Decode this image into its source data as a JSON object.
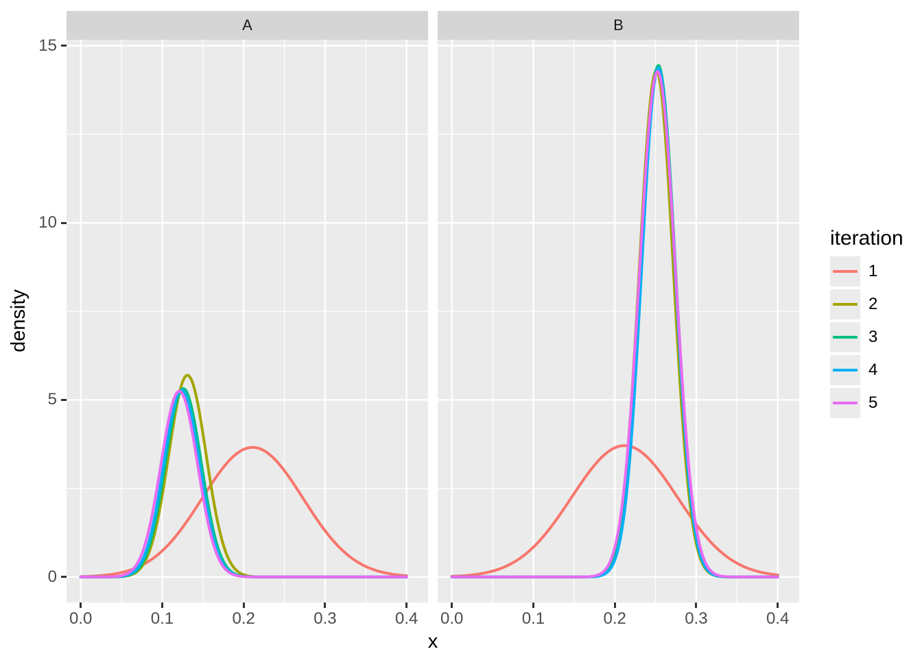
{
  "figure": {
    "xlabel": "x",
    "ylabel": "density",
    "background": "#FFFFFF",
    "panel_bg": "#EBEBEB",
    "strip_bg": "#D5D5D5",
    "grid_color": "#FFFFFF",
    "tick_mark_color": "#333333",
    "tick_label_color": "#4D4D4D",
    "strip_text_color": "#1A1A1A"
  },
  "axes": {
    "x_tick_labels": [
      "0.0",
      "0.1",
      "0.2",
      "0.3",
      "0.4"
    ],
    "x_tick_values": [
      0,
      0.1,
      0.2,
      0.3,
      0.4
    ],
    "x_minor_values": [
      0.05,
      0.15,
      0.25,
      0.35
    ],
    "y_tick_labels": [
      "0",
      "5",
      "10",
      "15"
    ],
    "y_tick_values": [
      0,
      5,
      10,
      15
    ],
    "y_minor_values": [
      2.5,
      7.5,
      12.5
    ],
    "x_range": [
      -0.0174,
      0.4264
    ],
    "y_range": [
      -0.72,
      15.17
    ],
    "grid": true
  },
  "legend": {
    "title": "iteration",
    "position": "right",
    "entries": [
      {
        "label": "1",
        "color": "#F8766D"
      },
      {
        "label": "2",
        "color": "#A3A500"
      },
      {
        "label": "3",
        "color": "#00BF7D"
      },
      {
        "label": "4",
        "color": "#00B0F6"
      },
      {
        "label": "5",
        "color": "#E76BF3"
      }
    ]
  },
  "chart_data": {
    "type": "line",
    "subtype": "faceted-density",
    "title": "",
    "xlabel": "x",
    "ylabel": "density",
    "xlim": [
      0,
      0.4
    ],
    "ylim": [
      0,
      15
    ],
    "legend_title": "iteration",
    "facets": [
      {
        "label": "A",
        "series": [
          {
            "name": "1",
            "color": "#F8766D",
            "shape": "gaussian",
            "center": 0.211,
            "peak": 3.66,
            "sd": 0.062,
            "domain": [
              0,
              0.4
            ]
          },
          {
            "name": "2",
            "color": "#A3A500",
            "shape": "gaussian",
            "center": 0.131,
            "peak": 5.7,
            "sd": 0.023,
            "domain": [
              0,
              0.4
            ]
          },
          {
            "name": "3",
            "color": "#00BF7D",
            "shape": "gaussian",
            "center": 0.126,
            "peak": 5.32,
            "sd": 0.022,
            "domain": [
              0,
              0.4
            ]
          },
          {
            "name": "4",
            "color": "#00B0F6",
            "shape": "gaussian",
            "center": 0.124,
            "peak": 5.28,
            "sd": 0.022,
            "domain": [
              0,
              0.4
            ]
          },
          {
            "name": "5",
            "color": "#E76BF3",
            "shape": "gaussian",
            "center": 0.121,
            "peak": 5.25,
            "sd": 0.0225,
            "domain": [
              0,
              0.4
            ]
          }
        ]
      },
      {
        "label": "B",
        "series": [
          {
            "name": "1",
            "color": "#F8766D",
            "shape": "gaussian",
            "center": 0.212,
            "peak": 3.71,
            "sd": 0.065,
            "domain": [
              0,
              0.4
            ]
          },
          {
            "name": "2",
            "color": "#A3A500",
            "shape": "gaussian",
            "center": 0.251,
            "peak": 14.3,
            "sd": 0.021,
            "domain": [
              0,
              0.4
            ]
          },
          {
            "name": "3",
            "color": "#00BF7D",
            "shape": "gaussian",
            "center": 0.2535,
            "peak": 14.45,
            "sd": 0.021,
            "domain": [
              0,
              0.4
            ]
          },
          {
            "name": "4",
            "color": "#00B0F6",
            "shape": "gaussian",
            "center": 0.2535,
            "peak": 14.38,
            "sd": 0.0205,
            "domain": [
              0,
              0.4
            ]
          },
          {
            "name": "5",
            "color": "#E76BF3",
            "shape": "gaussian",
            "center": 0.2525,
            "peak": 14.28,
            "sd": 0.022,
            "domain": [
              0,
              0.4
            ]
          }
        ]
      }
    ]
  }
}
